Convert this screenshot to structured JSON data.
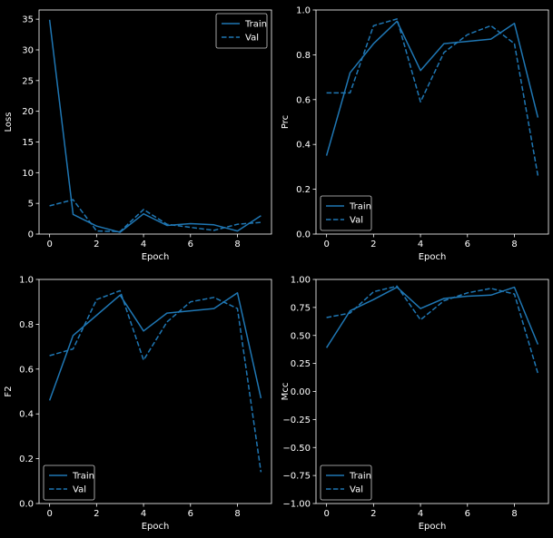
{
  "colors": {
    "background": "#000000",
    "axes": "#ffffff",
    "series": "#1f77b4",
    "legend_bg": "#ffffff"
  },
  "chart_data": [
    {
      "type": "line",
      "xlabel": "Epoch",
      "ylabel": "Loss",
      "xlim": [
        -0.45,
        9.45
      ],
      "ylim": [
        0,
        36.5
      ],
      "xticks": [
        0,
        2,
        4,
        6,
        8
      ],
      "yticks": [
        0,
        5,
        10,
        15,
        20,
        25,
        30,
        35
      ],
      "ytick_labels": [
        "0",
        "5",
        "10",
        "15",
        "20",
        "25",
        "30",
        "35"
      ],
      "legend": "top-right",
      "grid": false,
      "x": [
        0,
        1,
        2,
        3,
        4,
        5,
        6,
        7,
        8,
        9
      ],
      "series": [
        {
          "name": "Train",
          "style": "solid",
          "values": [
            34.9,
            3.2,
            1.3,
            0.3,
            3.3,
            1.4,
            1.7,
            1.5,
            0.5,
            3.0
          ]
        },
        {
          "name": "Val",
          "style": "dashed",
          "values": [
            4.6,
            5.6,
            0.5,
            0.4,
            4.0,
            1.6,
            1.1,
            0.6,
            1.6,
            1.9
          ]
        }
      ]
    },
    {
      "type": "line",
      "xlabel": "Epoch",
      "ylabel": "Prc",
      "xlim": [
        -0.45,
        9.45
      ],
      "ylim": [
        0,
        1.0
      ],
      "xticks": [
        0,
        2,
        4,
        6,
        8
      ],
      "yticks": [
        0,
        0.2,
        0.4,
        0.6,
        0.8,
        1.0
      ],
      "ytick_labels": [
        "0.0",
        "0.2",
        "0.4",
        "0.6",
        "0.8",
        "1.0"
      ],
      "legend": "bottom-left",
      "grid": false,
      "x": [
        0,
        1,
        2,
        3,
        4,
        5,
        6,
        7,
        8,
        9
      ],
      "series": [
        {
          "name": "Train",
          "style": "solid",
          "values": [
            0.35,
            0.72,
            0.85,
            0.95,
            0.73,
            0.85,
            0.86,
            0.87,
            0.94,
            0.52
          ]
        },
        {
          "name": "Val",
          "style": "dashed",
          "values": [
            0.63,
            0.63,
            0.93,
            0.96,
            0.59,
            0.81,
            0.89,
            0.93,
            0.85,
            0.26
          ]
        }
      ]
    },
    {
      "type": "line",
      "xlabel": "Epoch",
      "ylabel": "F2",
      "xlim": [
        -0.45,
        9.45
      ],
      "ylim": [
        0,
        1.0
      ],
      "xticks": [
        0,
        2,
        4,
        6,
        8
      ],
      "yticks": [
        0,
        0.2,
        0.4,
        0.6,
        0.8,
        1.0
      ],
      "ytick_labels": [
        "0.0",
        "0.2",
        "0.4",
        "0.6",
        "0.8",
        "1.0"
      ],
      "legend": "bottom-left",
      "grid": false,
      "x": [
        0,
        1,
        2,
        3,
        4,
        5,
        6,
        7,
        8,
        9
      ],
      "series": [
        {
          "name": "Train",
          "style": "solid",
          "values": [
            0.46,
            0.75,
            0.84,
            0.93,
            0.77,
            0.85,
            0.86,
            0.87,
            0.94,
            0.47
          ]
        },
        {
          "name": "Val",
          "style": "dashed",
          "values": [
            0.66,
            0.69,
            0.91,
            0.95,
            0.64,
            0.81,
            0.9,
            0.92,
            0.87,
            0.14
          ]
        }
      ]
    },
    {
      "type": "line",
      "xlabel": "Epoch",
      "ylabel": "Mcc",
      "xlim": [
        -0.45,
        9.45
      ],
      "ylim": [
        -1.0,
        1.0
      ],
      "xticks": [
        0,
        2,
        4,
        6,
        8
      ],
      "yticks": [
        -1.0,
        -0.75,
        -0.5,
        -0.25,
        0.0,
        0.25,
        0.5,
        0.75,
        1.0
      ],
      "ytick_labels": [
        "−1.00",
        "−0.75",
        "−0.50",
        "−0.25",
        "0.00",
        "0.25",
        "0.50",
        "0.75",
        "1.00"
      ],
      "legend": "bottom-left",
      "grid": false,
      "x": [
        0,
        1,
        2,
        3,
        4,
        5,
        6,
        7,
        8,
        9
      ],
      "series": [
        {
          "name": "Train",
          "style": "solid",
          "values": [
            0.39,
            0.72,
            0.82,
            0.93,
            0.74,
            0.83,
            0.85,
            0.86,
            0.93,
            0.42
          ]
        },
        {
          "name": "Val",
          "style": "dashed",
          "values": [
            0.66,
            0.7,
            0.89,
            0.94,
            0.64,
            0.81,
            0.88,
            0.92,
            0.87,
            0.16
          ]
        }
      ]
    }
  ]
}
